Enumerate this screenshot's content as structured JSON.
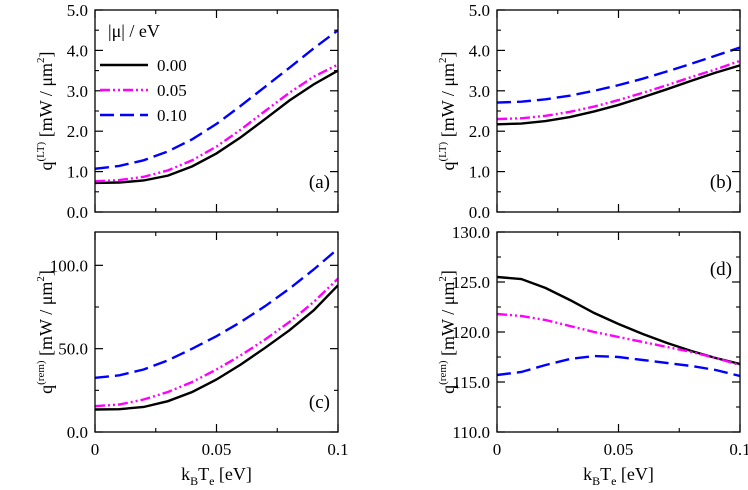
{
  "colors": {
    "mu_000": "#000000",
    "mu_005": "#ff00ff",
    "mu_010": "#0000ff"
  },
  "legend": {
    "title": "|μ| / eV",
    "entries": [
      {
        "label": "0.00",
        "color": "#000000",
        "dash": "solid"
      },
      {
        "label": "0.05",
        "color": "#ff00ff",
        "dash": "dash-dot-dot"
      },
      {
        "label": "0.10",
        "color": "#0000ff",
        "dash": "dashed"
      }
    ]
  },
  "x_axis": {
    "ticks": [
      "0",
      "0.05",
      "0.1"
    ],
    "label_main": "k",
    "label_sub1": "B",
    "label_mid": "T",
    "label_sub2": "e",
    "label_unit": " [eV]"
  },
  "chart_data": [
    {
      "type": "line",
      "panel": "(a)",
      "ylabel_main": "q",
      "ylabel_sup": "(LT)",
      "ylabel_unit": " [mW / μm",
      "ylabel_pow": "2",
      "ylabel_close": "]",
      "xlim": [
        0,
        0.1
      ],
      "ylim": [
        0,
        5
      ],
      "yticks": [
        0,
        1,
        2,
        3,
        4,
        5
      ],
      "ytick_labels": [
        "0.0",
        "1.0",
        "2.0",
        "3.0",
        "4.0",
        "5.0"
      ],
      "x": [
        0,
        0.01,
        0.02,
        0.03,
        0.04,
        0.05,
        0.06,
        0.07,
        0.08,
        0.09,
        0.1
      ],
      "series": [
        {
          "name": "0.00",
          "values": [
            0.72,
            0.73,
            0.78,
            0.9,
            1.13,
            1.45,
            1.85,
            2.3,
            2.76,
            3.16,
            3.5
          ]
        },
        {
          "name": "0.05",
          "values": [
            0.76,
            0.79,
            0.87,
            1.03,
            1.28,
            1.62,
            2.04,
            2.5,
            2.95,
            3.35,
            3.65
          ]
        },
        {
          "name": "0.10",
          "values": [
            1.07,
            1.14,
            1.28,
            1.5,
            1.8,
            2.18,
            2.63,
            3.1,
            3.57,
            4.05,
            4.5
          ]
        }
      ]
    },
    {
      "type": "line",
      "panel": "(b)",
      "ylabel_main": "q",
      "ylabel_sup": "(LT)",
      "ylabel_unit": " [mW / μm",
      "ylabel_pow": "2",
      "ylabel_close": "]",
      "xlim": [
        0,
        0.1
      ],
      "ylim": [
        0,
        5
      ],
      "yticks": [
        0,
        1,
        2,
        3,
        4,
        5
      ],
      "ytick_labels": [
        "0.0",
        "1.0",
        "2.0",
        "3.0",
        "4.0",
        "5.0"
      ],
      "x": [
        0,
        0.01,
        0.02,
        0.03,
        0.04,
        0.05,
        0.06,
        0.07,
        0.08,
        0.09,
        0.1
      ],
      "series": [
        {
          "name": "0.00",
          "values": [
            2.17,
            2.19,
            2.25,
            2.35,
            2.49,
            2.65,
            2.84,
            3.04,
            3.25,
            3.45,
            3.63
          ]
        },
        {
          "name": "0.05",
          "values": [
            2.3,
            2.32,
            2.38,
            2.48,
            2.61,
            2.77,
            2.95,
            3.14,
            3.34,
            3.53,
            3.74
          ]
        },
        {
          "name": "0.10",
          "values": [
            2.71,
            2.73,
            2.79,
            2.88,
            3.0,
            3.14,
            3.3,
            3.48,
            3.67,
            3.87,
            4.07
          ]
        }
      ]
    },
    {
      "type": "line",
      "panel": "(c)",
      "ylabel_main": "q",
      "ylabel_sup": "(rem)",
      "ylabel_unit": " [mW / μm",
      "ylabel_pow": "2",
      "ylabel_close": "]",
      "xlim": [
        0,
        0.1
      ],
      "ylim": [
        0,
        120
      ],
      "yticks": [
        0,
        50,
        100
      ],
      "ytick_labels": [
        "0.0",
        "50.0",
        "100.0"
      ],
      "x": [
        0,
        0.01,
        0.02,
        0.03,
        0.04,
        0.05,
        0.06,
        0.07,
        0.08,
        0.09,
        0.1
      ],
      "series": [
        {
          "name": "0.00",
          "values": [
            13.5,
            13.7,
            15,
            18.5,
            24,
            31.5,
            40.5,
            50.5,
            61,
            73,
            88
          ]
        },
        {
          "name": "0.05",
          "values": [
            15.5,
            16.5,
            19.5,
            24,
            30,
            37.5,
            46,
            55.5,
            66,
            78,
            92
          ]
        },
        {
          "name": "0.10",
          "values": [
            32.5,
            34,
            37.5,
            43,
            50,
            57.5,
            66,
            75.5,
            86,
            97.5,
            110
          ]
        }
      ]
    },
    {
      "type": "line",
      "panel": "(d)",
      "ylabel_main": "q",
      "ylabel_sup": "(rem)",
      "ylabel_unit": " [mW / μm",
      "ylabel_pow": "2",
      "ylabel_close": "]",
      "xlim": [
        0,
        0.1
      ],
      "ylim": [
        110,
        130
      ],
      "yticks": [
        110,
        115,
        120,
        125,
        130
      ],
      "ytick_labels": [
        "110.0",
        "115.0",
        "120.0",
        "125.0",
        "130.0"
      ],
      "x": [
        0,
        0.01,
        0.02,
        0.03,
        0.04,
        0.05,
        0.06,
        0.07,
        0.08,
        0.09,
        0.1
      ],
      "series": [
        {
          "name": "0.00",
          "values": [
            125.5,
            125.3,
            124.4,
            123.2,
            121.9,
            120.8,
            119.8,
            118.9,
            118.1,
            117.4,
            116.8
          ]
        },
        {
          "name": "0.05",
          "values": [
            121.8,
            121.6,
            121.2,
            120.6,
            120.0,
            119.5,
            119.0,
            118.5,
            118.0,
            117.4,
            116.7
          ]
        },
        {
          "name": "0.10",
          "values": [
            115.7,
            116.0,
            116.7,
            117.3,
            117.6,
            117.5,
            117.2,
            116.9,
            116.6,
            116.2,
            115.6
          ]
        }
      ]
    }
  ]
}
